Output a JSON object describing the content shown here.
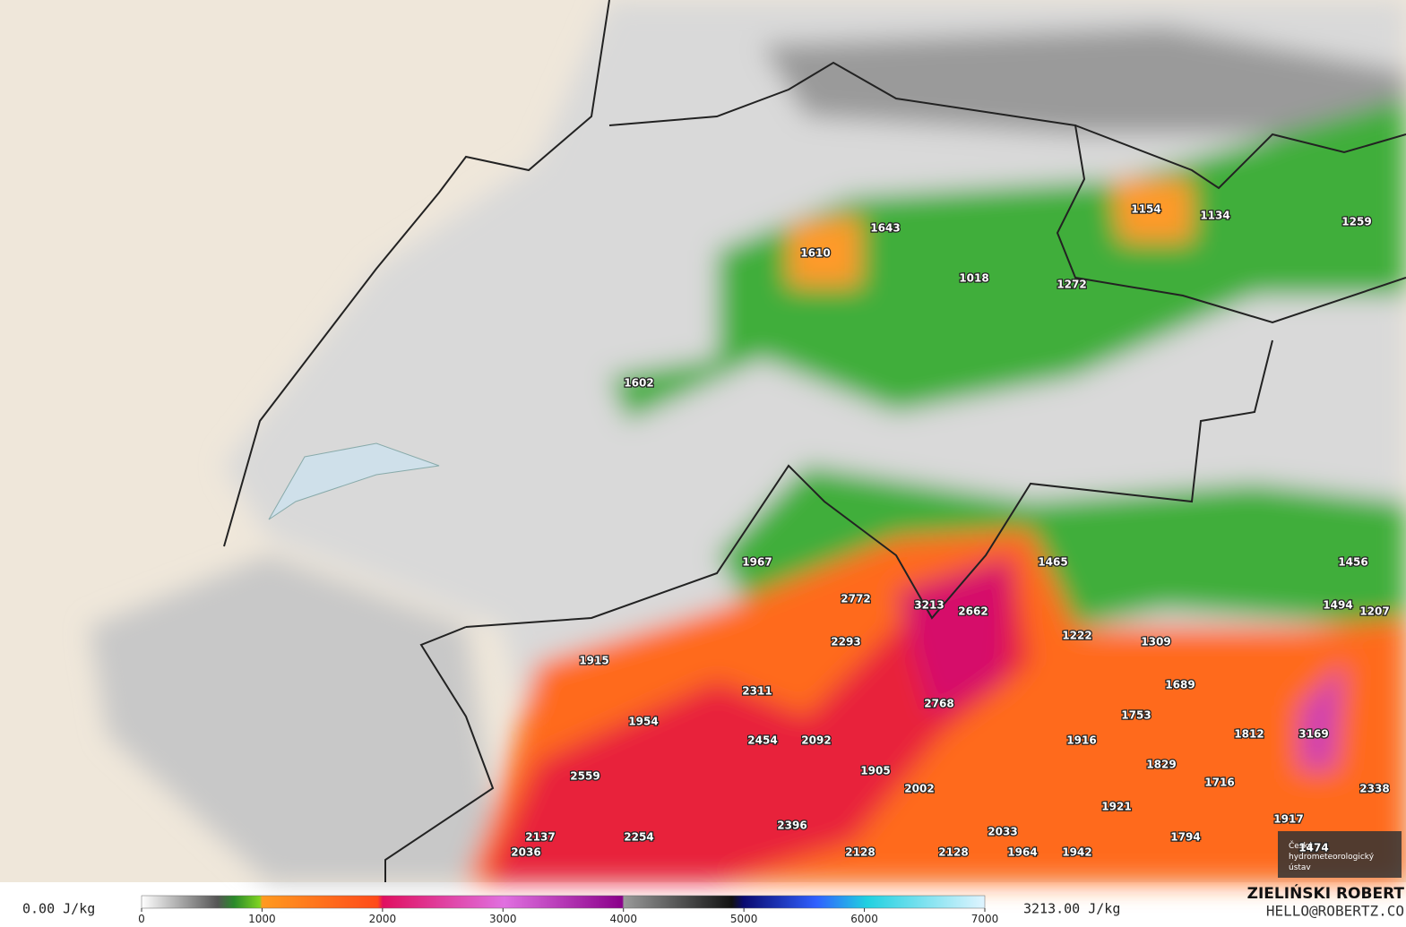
{
  "labels": [
    1643,
    1610,
    1018,
    1272,
    1154,
    1134,
    1259,
    1602,
    1967,
    1465,
    1456,
    2772,
    3213,
    2662,
    1494,
    1207,
    2293,
    1222,
    1309,
    1915,
    2311,
    1689,
    2768,
    1753,
    1954,
    2454,
    2092,
    1916,
    1812,
    3169,
    1829,
    1905,
    1716,
    2002,
    2338,
    2559,
    1921,
    1917,
    2396,
    2033,
    2137,
    2254,
    1794,
    2036,
    2128,
    2128,
    1964,
    1942,
    1474
  ],
  "legend": {
    "min_label": "0.00 J/kg",
    "max_label": "3213.00 J/kg",
    "colorbar": {
      "lim": [
        0,
        7000
      ],
      "ticks": [
        0,
        1000,
        2000,
        3000,
        4000,
        5000,
        6000,
        7000
      ]
    }
  },
  "credits": {
    "author": "ZIELIŃSKI ROBERT",
    "contact": "HELLO@ROBERTZ.CO",
    "logo": [
      "Český",
      "hydrometeorologický",
      "ústav"
    ]
  }
}
